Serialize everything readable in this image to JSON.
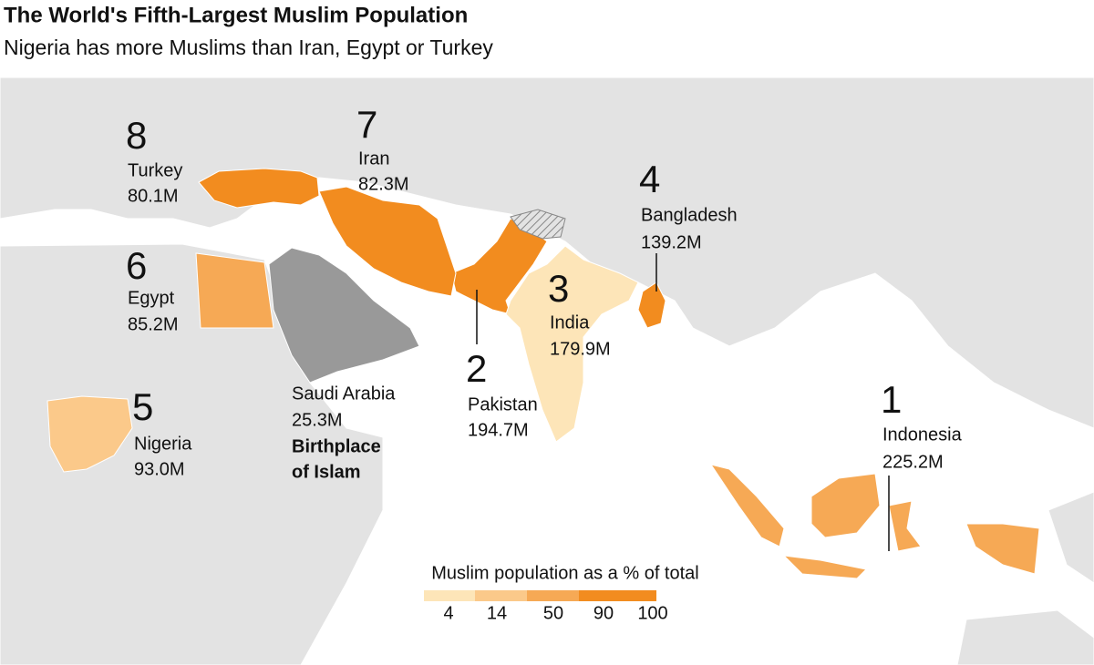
{
  "header": {
    "title": "The World's Fifth-Largest Muslim Population",
    "subtitle": "Nigeria has more Muslims than Iran, Egypt or Turkey"
  },
  "countries": [
    {
      "rank": "1",
      "name": "Indonesia",
      "population": "225.2M",
      "color": "#f6a955"
    },
    {
      "rank": "2",
      "name": "Pakistan",
      "population": "194.7M",
      "color": "#f28c1f"
    },
    {
      "rank": "3",
      "name": "India",
      "population": "179.9M",
      "color": "#fde5b8"
    },
    {
      "rank": "4",
      "name": "Bangladesh",
      "population": "139.2M",
      "color": "#f28c1f"
    },
    {
      "rank": "5",
      "name": "Nigeria",
      "population": "93.0M",
      "color": "#fbc98a"
    },
    {
      "rank": "6",
      "name": "Egypt",
      "population": "85.2M",
      "color": "#f6a955"
    },
    {
      "rank": "7",
      "name": "Iran",
      "population": "82.3M",
      "color": "#f28c1f"
    },
    {
      "rank": "8",
      "name": "Turkey",
      "population": "80.1M",
      "color": "#f28c1f"
    }
  ],
  "saudi_arabia": {
    "name": "Saudi Arabia",
    "population": "25.3M",
    "note": [
      "Birthplace",
      "of Islam"
    ]
  },
  "legend": {
    "title": "Muslim population as a % of total",
    "ticks": [
      4,
      14,
      50,
      90,
      100
    ],
    "colors": [
      "#fde5b8",
      "#fbc98a",
      "#f6a955",
      "#f28c1f"
    ]
  }
}
